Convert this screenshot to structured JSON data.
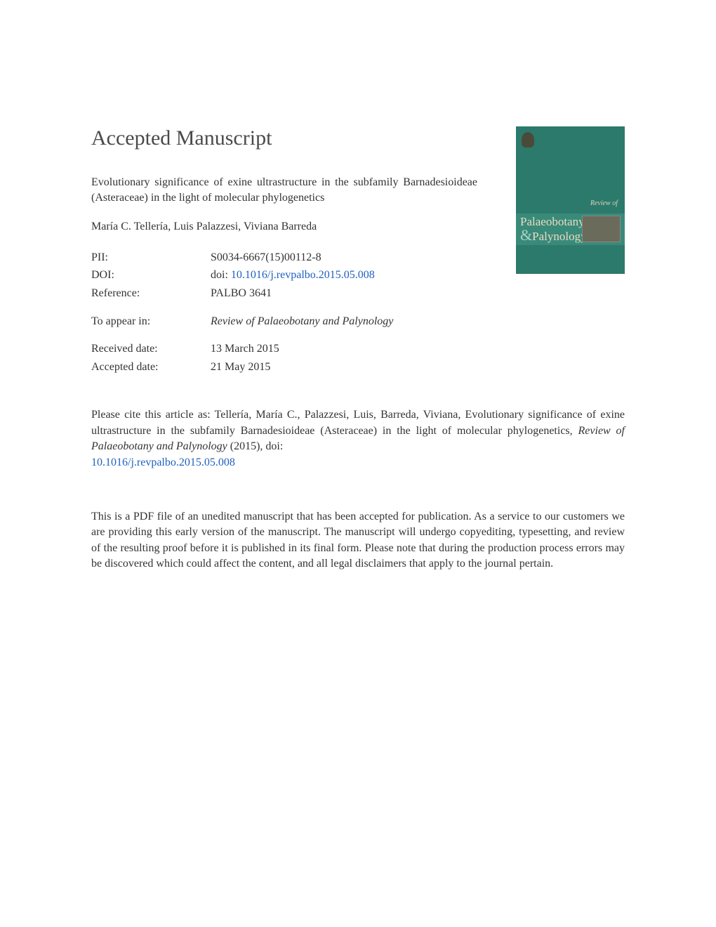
{
  "heading": "Accepted Manuscript",
  "article": {
    "title": "Evolutionary significance of exine ultrastructure in the subfamily Barnadesioideae (Asteraceae) in the light of molecular phylogenetics",
    "authors": "María C. Tellería, Luis Palazzesi, Viviana Barreda"
  },
  "metadata": {
    "pii_label": "PII:",
    "pii_value": "S0034-6667(15)00112-8",
    "doi_label": "DOI:",
    "doi_prefix": "doi: ",
    "doi_link": "10.1016/j.revpalbo.2015.05.008",
    "reference_label": "Reference:",
    "reference_value": "PALBO 3641",
    "appear_label": "To appear in:",
    "appear_value": "Review of Palaeobotany and Palynology",
    "received_label": "Received date:",
    "received_value": "13 March 2015",
    "accepted_label": "Accepted date:",
    "accepted_value": "21 May 2015"
  },
  "citation": {
    "text_before": "Please cite this article as: Tellería, María C., Palazzesi, Luis, Barreda, Viviana, Evolutionary significance of exine ultrastructure in the subfamily Barnadesioideae (Asteraceae) in the light of molecular phylogenetics, ",
    "journal": "Review of Palaeobotany and Palynology",
    "year": " (2015),  doi: ",
    "doi_link": "10.1016/j.revpalbo.2015.05.008"
  },
  "disclaimer": "This is a PDF file of an unedited manuscript that has been accepted for publication. As a service to our customers we are providing this early version of the manuscript. The manuscript will undergo copyediting, typesetting, and review of the resulting proof before it is published in its final form. Please note that during the production process errors may be discovered which could affect the content, and all legal disclaimers that apply to the journal pertain.",
  "cover": {
    "review_of": "Review of",
    "line1": "Palaeobotany",
    "line2": "Palynology"
  },
  "colors": {
    "cover_bg": "#2b7a6b",
    "cover_band": "#3a8a7a",
    "cover_text": "#e8dcc0",
    "link_color": "#2060c0",
    "text_color": "#333333",
    "heading_color": "#4a4a4a"
  }
}
